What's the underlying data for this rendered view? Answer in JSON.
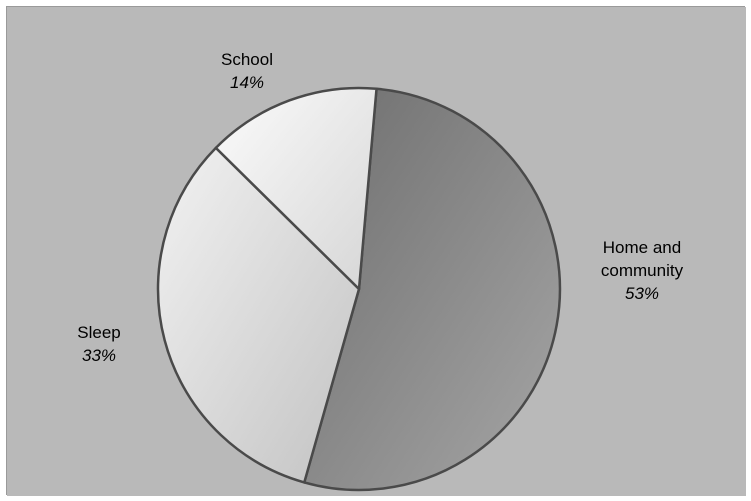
{
  "chart_data": {
    "type": "pie",
    "start_angle_deg": 5,
    "direction": "clockwise",
    "legend": "none",
    "colors": {
      "background": "#b9b9b9",
      "slice_border": "#4a4a4a"
    },
    "slices": [
      {
        "label_lines": [
          "Home and",
          "community"
        ],
        "value": 53,
        "value_label": "53%",
        "gradient": [
          "#6e6e6e",
          "#a6a6a6"
        ]
      },
      {
        "label_lines": [
          "Sleep"
        ],
        "value": 33,
        "value_label": "33%",
        "gradient": [
          "#f2f2f2",
          "#c2c2c2"
        ]
      },
      {
        "label_lines": [
          "School"
        ],
        "value": 14,
        "value_label": "14%",
        "gradient": [
          "#fbfbfb",
          "#d6d6d6"
        ]
      }
    ]
  }
}
